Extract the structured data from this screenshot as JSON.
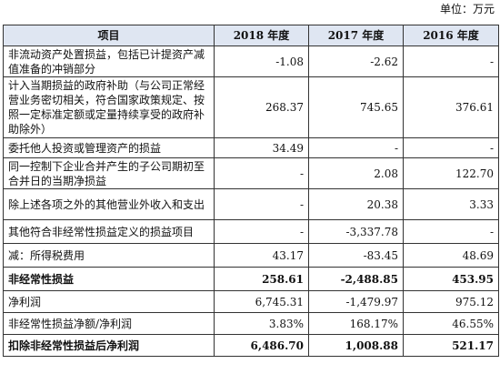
{
  "unit_label": "单位：万元",
  "headers": [
    "项目",
    "2018 年度",
    "2017 年度",
    "2016 年度"
  ],
  "rows": [
    {
      "item": "非流动资产处置损益，包括已计提资产减值准备的冲销部分",
      "y2018": "-1.08",
      "y2017": "-2.62",
      "y2016": "-",
      "bold": false
    },
    {
      "item": "计入当期损益的政府补助（与公司正常经营业务密切相关，符合国家政策规定、按照一定标准定额或定量持续享受的政府补助除外）",
      "y2018": "268.37",
      "y2017": "745.65",
      "y2016": "376.61",
      "bold": false
    },
    {
      "item": "委托他人投资或管理资产的损益",
      "y2018": "34.49",
      "y2017": "-",
      "y2016": "-",
      "bold": false
    },
    {
      "item": "同一控制下企业合并产生的子公司期初至合并日的当期净损益",
      "y2018": "-",
      "y2017": "2.08",
      "y2016": "122.70",
      "bold": false
    },
    {
      "item": "除上述各项之外的其他营业外收入和支出",
      "y2018": "-",
      "y2017": "20.38",
      "y2016": "3.33",
      "bold": false
    },
    {
      "item": "其他符合非经常性损益定义的损益项目",
      "y2018": "-",
      "y2017": "-3,337.78",
      "y2016": "-",
      "bold": false
    },
    {
      "item": "减：所得税费用",
      "y2018": "43.17",
      "y2017": "-83.45",
      "y2016": "48.69",
      "bold": false
    },
    {
      "item": "非经常性损益",
      "y2018": "258.61",
      "y2017": "-2,488.85",
      "y2016": "453.95",
      "bold": true
    },
    {
      "item": "净利润",
      "y2018": "6,745.31",
      "y2017": "-1,479.97",
      "y2016": "975.12",
      "bold": false
    },
    {
      "item": "非经常性损益净额/净利润",
      "y2018": "3.83%",
      "y2017": "168.17%",
      "y2016": "46.55%",
      "bold": false
    },
    {
      "item": "扣除非经常性损益后净利润",
      "y2018": "6,486.70",
      "y2017": "1,008.88",
      "y2016": "521.17",
      "bold": true
    }
  ]
}
